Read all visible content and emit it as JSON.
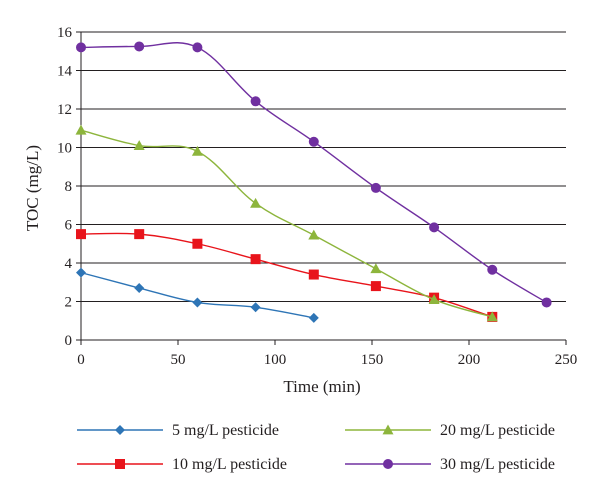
{
  "chart_data": {
    "type": "line",
    "xlabel": "Time (min)",
    "ylabel": "TOC (mg/L)",
    "xlim": [
      0,
      250
    ],
    "ylim": [
      0,
      16
    ],
    "xticks": [
      0,
      50,
      100,
      150,
      200,
      250
    ],
    "yticks": [
      0,
      2,
      4,
      6,
      8,
      10,
      12,
      14,
      16
    ],
    "x_tick_labels": [
      "0",
      "50",
      "100",
      "150",
      "200",
      "250"
    ],
    "y_tick_labels": [
      "0",
      "2",
      "4",
      "6",
      "8",
      "10",
      "12",
      "14",
      "16"
    ],
    "grid": "horizontal",
    "legend_position": "bottom",
    "series": [
      {
        "name": "5 mg/L pesticide",
        "color": "#2e75b6",
        "marker": "diamond",
        "x": [
          0,
          30,
          60,
          90,
          120
        ],
        "y": [
          3.5,
          2.7,
          1.95,
          1.7,
          1.15
        ]
      },
      {
        "name": "10 mg/L pesticide",
        "color": "#e8141b",
        "marker": "square",
        "x": [
          0,
          30,
          60,
          90,
          120,
          152,
          182,
          212
        ],
        "y": [
          5.5,
          5.5,
          5.0,
          4.2,
          3.4,
          2.8,
          2.2,
          1.2
        ]
      },
      {
        "name": "20 mg/L pesticide",
        "color": "#8db53c",
        "marker": "triangle",
        "x": [
          0,
          30,
          60,
          90,
          120,
          152,
          182,
          212
        ],
        "y": [
          10.9,
          10.1,
          9.8,
          7.1,
          5.45,
          3.7,
          2.1,
          1.2
        ]
      },
      {
        "name": "30 mg/L pesticide",
        "color": "#7030a0",
        "marker": "circle",
        "x": [
          0,
          30,
          60,
          90,
          120,
          152,
          182,
          212,
          240
        ],
        "y": [
          15.2,
          15.25,
          15.2,
          12.4,
          10.3,
          7.9,
          5.85,
          3.65,
          1.95
        ]
      }
    ]
  }
}
